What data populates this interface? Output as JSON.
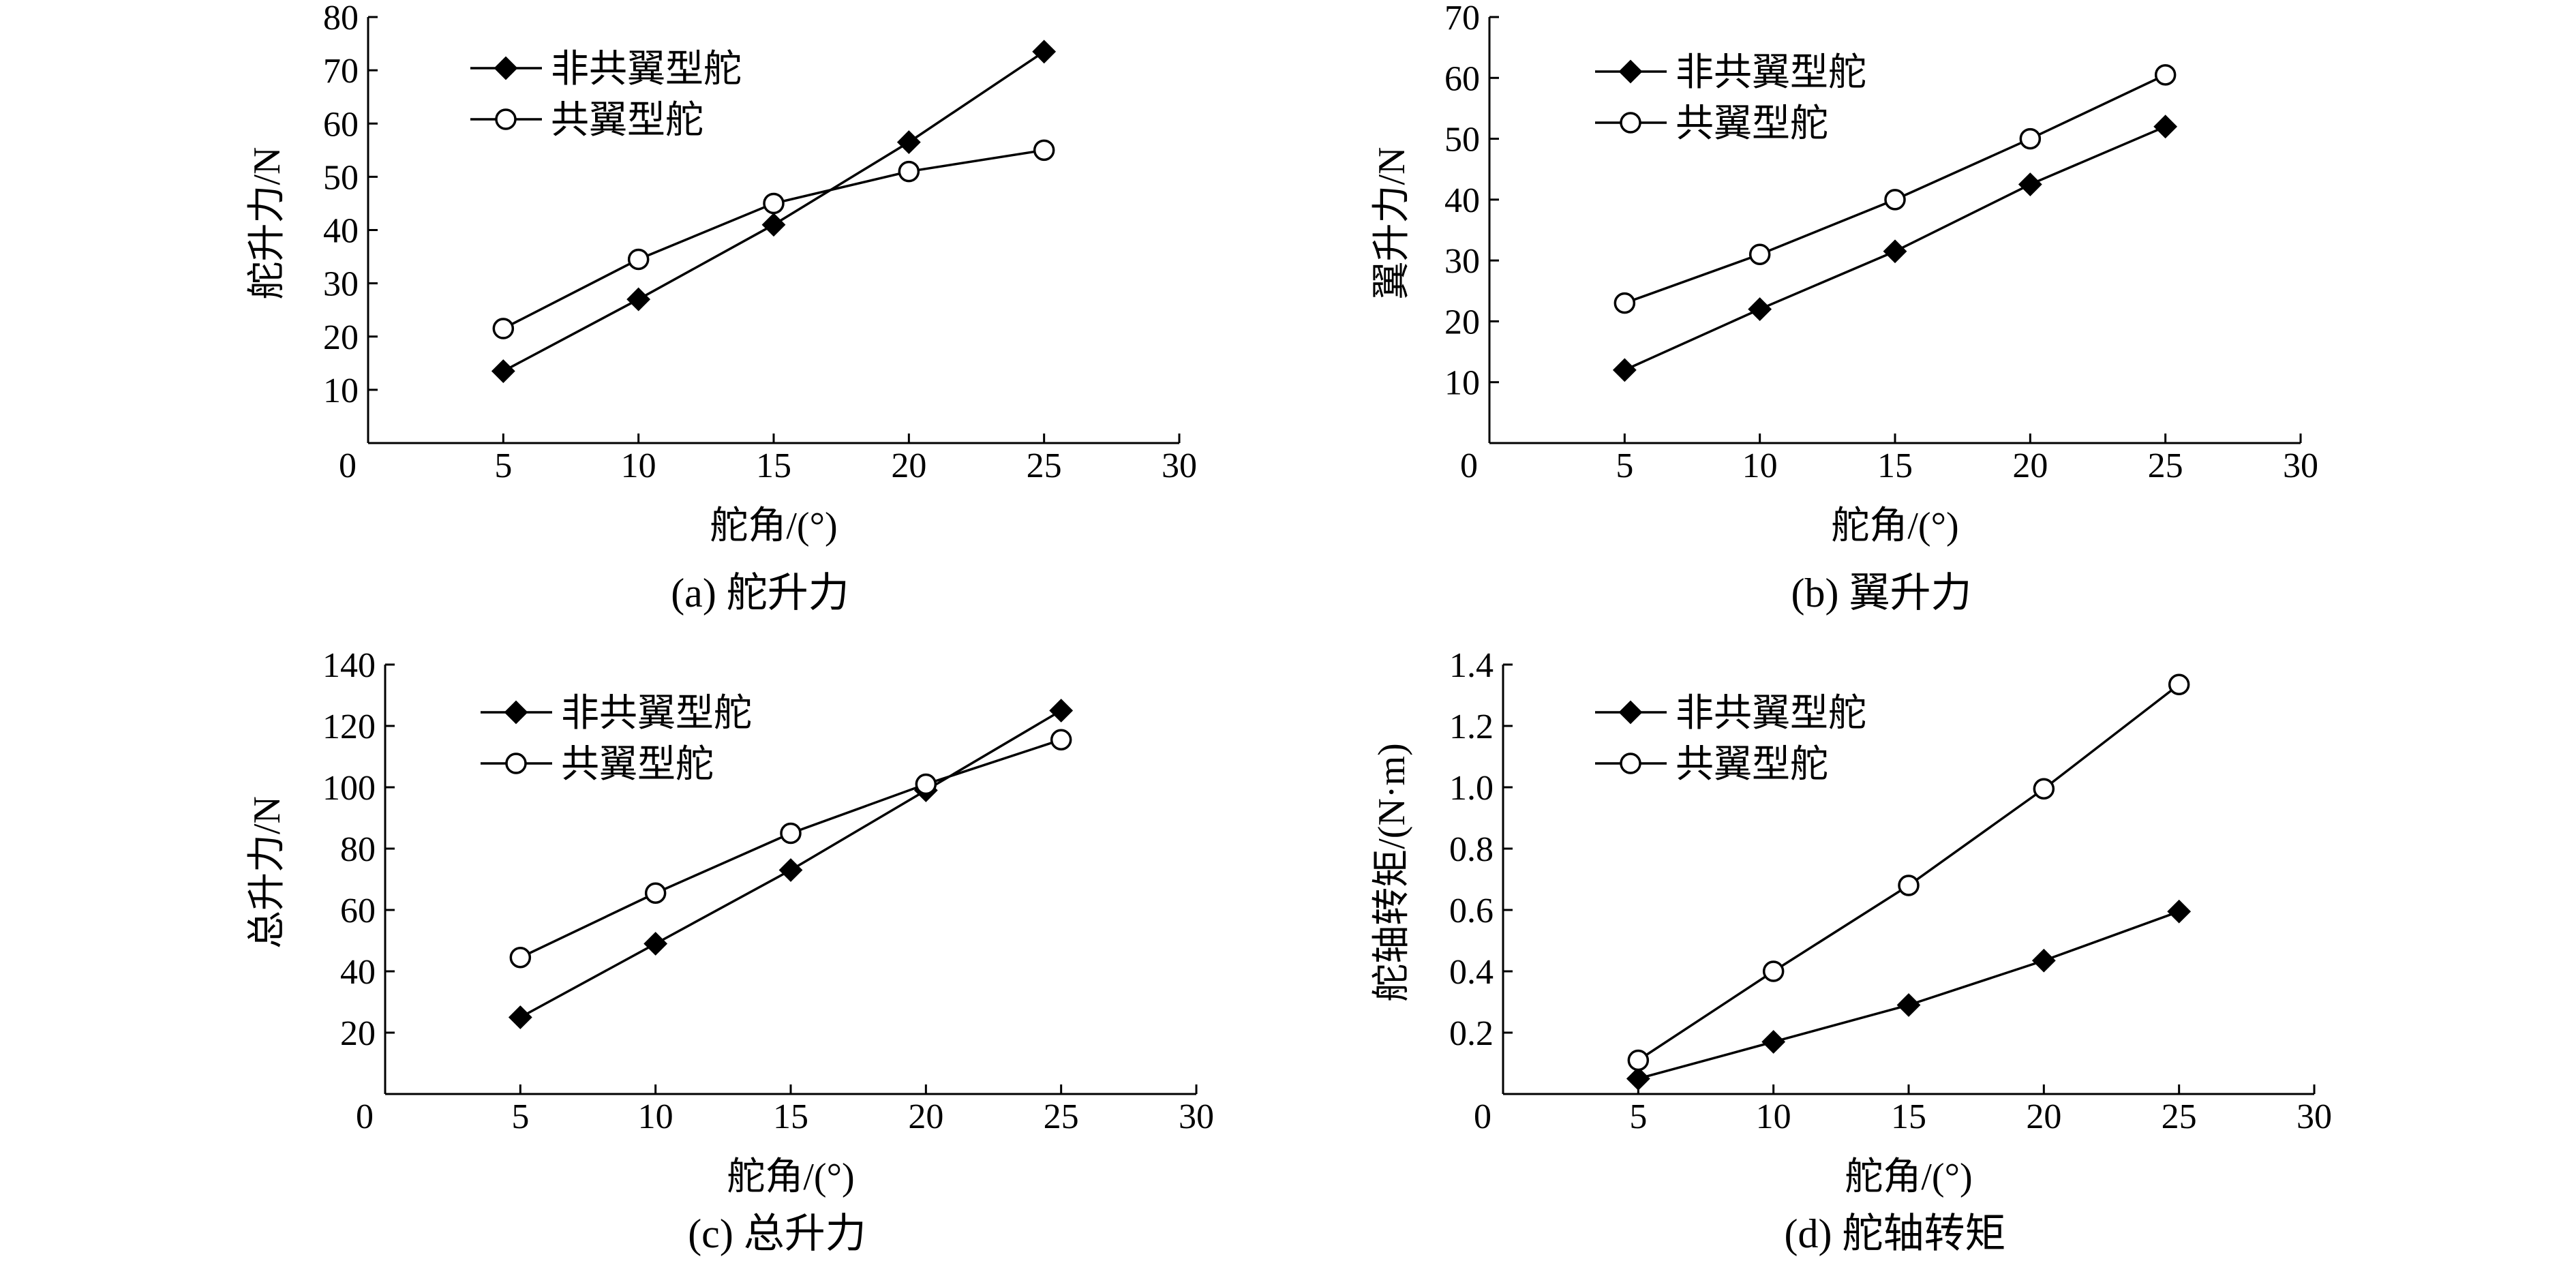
{
  "chart_data": [
    {
      "id": "a",
      "type": "line",
      "caption": "(a) 舵升力",
      "xlabel": "舵角/(°)",
      "ylabel": "舵升力/N",
      "xlim": [
        0,
        30
      ],
      "ylim": [
        0,
        80
      ],
      "xticks": [
        0,
        5,
        10,
        15,
        20,
        25,
        30
      ],
      "yticks": [
        10,
        20,
        30,
        40,
        50,
        60,
        70,
        80
      ],
      "legend_position": "top-left",
      "x": [
        5,
        10,
        15,
        20,
        25
      ],
      "series": [
        {
          "name": "非共翼型舵",
          "marker": "diamond",
          "values": [
            13.5,
            27,
            41,
            56.5,
            73.5
          ]
        },
        {
          "name": "共翼型舵",
          "marker": "circle",
          "values": [
            21.5,
            34.5,
            45,
            51,
            55
          ]
        }
      ]
    },
    {
      "id": "b",
      "type": "line",
      "caption": "(b) 翼升力",
      "xlabel": "舵角/(°)",
      "ylabel": "翼升力/N",
      "xlim": [
        0,
        30
      ],
      "ylim": [
        0,
        70
      ],
      "xticks": [
        0,
        5,
        10,
        15,
        20,
        25,
        30
      ],
      "yticks": [
        10,
        20,
        30,
        40,
        50,
        60,
        70
      ],
      "legend_position": "top-left",
      "x": [
        5,
        10,
        15,
        20,
        25
      ],
      "series": [
        {
          "name": "非共翼型舵",
          "marker": "diamond",
          "values": [
            12,
            22,
            31.5,
            42.5,
            52
          ]
        },
        {
          "name": "共翼型舵",
          "marker": "circle",
          "values": [
            23,
            31,
            40,
            50,
            60.5
          ]
        }
      ]
    },
    {
      "id": "c",
      "type": "line",
      "caption": "(c) 总升力",
      "xlabel": "舵角/(°)",
      "ylabel": "总升力/N",
      "xlim": [
        0,
        30
      ],
      "ylim": [
        0,
        140
      ],
      "xticks": [
        0,
        5,
        10,
        15,
        20,
        25,
        30
      ],
      "yticks": [
        20,
        40,
        60,
        80,
        100,
        120,
        140
      ],
      "legend_position": "top-left",
      "x": [
        5,
        10,
        15,
        20,
        25
      ],
      "series": [
        {
          "name": "非共翼型舵",
          "marker": "diamond",
          "values": [
            25,
            49,
            73,
            99,
            125
          ]
        },
        {
          "name": "共翼型舵",
          "marker": "circle",
          "values": [
            44.5,
            65.5,
            85,
            101,
            115.5
          ]
        }
      ]
    },
    {
      "id": "d",
      "type": "line",
      "caption": "(d) 舵轴转矩",
      "xlabel": "舵角/(°)",
      "ylabel": "舵轴转矩/(N·m)",
      "xlim": [
        0,
        30
      ],
      "ylim": [
        0,
        1.4
      ],
      "xticks": [
        0,
        5,
        10,
        15,
        20,
        25,
        30
      ],
      "yticks": [
        "0.2",
        "0.4",
        "0.6",
        "0.8",
        "1.0",
        "1.2",
        "1.4"
      ],
      "legend_position": "top-left",
      "x": [
        5,
        10,
        15,
        20,
        25
      ],
      "series": [
        {
          "name": "非共翼型舵",
          "marker": "diamond",
          "values": [
            0.05,
            0.17,
            0.29,
            0.435,
            0.595
          ]
        },
        {
          "name": "共翼型舵",
          "marker": "circle",
          "values": [
            0.11,
            0.4,
            0.68,
            0.995,
            1.335
          ]
        }
      ]
    }
  ]
}
